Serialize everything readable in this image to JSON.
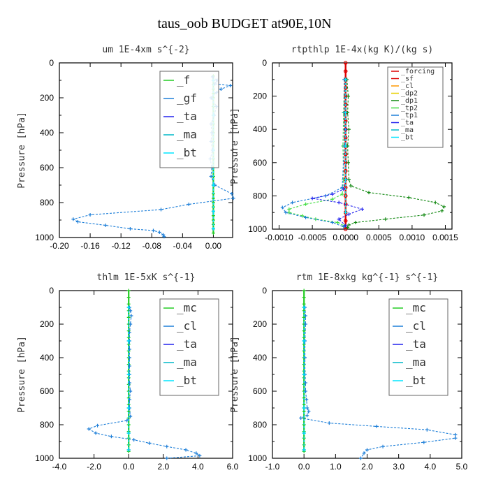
{
  "figure_title": "taus_oob  BUDGET at90E,10N",
  "colors": {
    "f": "#22cc22",
    "gf": "#1e7fd8",
    "ta": "#2222ee",
    "ma": "#00b8c8",
    "bt": "#00e5ff",
    "mc": "#22cc22",
    "cl": "#1e7fd8",
    "forcing": "#dd0000",
    "sf": "#dd0000",
    "cl_o": "#ff9900",
    "dp2": "#e8d000",
    "dp1": "#118811",
    "tp2": "#44dd44",
    "tp1": "#1e7fd8"
  },
  "chart_data": [
    {
      "type": "line",
      "title": "um   1E-4xm  s^{-2}",
      "ylabel": "Pressure [hPa]",
      "xlim": [
        -0.2,
        0.025
      ],
      "ylim": [
        1000,
        0
      ],
      "xticks": [
        -0.2,
        -0.16,
        -0.12,
        -0.08,
        -0.04,
        0.0
      ],
      "xticklabels": [
        "-0.20",
        "-0.16",
        "-0.12",
        "-0.08",
        "-0.04",
        "0.00"
      ],
      "yticks": [
        0,
        200,
        400,
        600,
        800,
        1000
      ],
      "legend": "top-right",
      "legend_style": "large",
      "series": [
        {
          "name": "_f",
          "color": "f",
          "x": [
            0,
            0,
            0,
            0,
            0,
            0,
            0,
            0,
            0,
            0,
            0,
            0,
            0,
            0,
            0,
            0,
            0,
            0,
            0,
            0,
            0,
            0,
            0,
            0,
            0,
            0
          ],
          "y": [
            75,
            100,
            125,
            150,
            175,
            200,
            250,
            300,
            350,
            400,
            450,
            500,
            550,
            600,
            650,
            700,
            750,
            775,
            800,
            825,
            850,
            875,
            900,
            925,
            950,
            975
          ]
        },
        {
          "name": "_gf",
          "color": "gf",
          "x": [
            -0.001,
            0.005,
            0.002,
            0.022,
            0.01,
            0.004,
            -0.003,
            0.004,
            0.001,
            -0.003,
            -0.002,
            -0.003,
            -0.001,
            -0.004,
            -0.002,
            -0.003,
            0.002,
            0.024,
            0.026,
            -0.032,
            -0.068,
            -0.16,
            -0.182,
            -0.176,
            -0.14,
            -0.108,
            -0.078,
            -0.07,
            -0.065,
            -0.064
          ],
          "y": [
            80,
            100,
            120,
            130,
            150,
            170,
            200,
            250,
            300,
            350,
            400,
            450,
            500,
            550,
            600,
            650,
            700,
            750,
            775,
            810,
            840,
            870,
            895,
            910,
            930,
            950,
            960,
            970,
            985,
            995
          ]
        },
        {
          "name": "_ta",
          "color": "ta",
          "x": [
            0,
            0,
            0,
            0,
            0,
            0
          ],
          "y": [
            100,
            300,
            500,
            700,
            850,
            950
          ]
        },
        {
          "name": "_ma",
          "color": "ma",
          "x": [
            0,
            0,
            0,
            0,
            0,
            0
          ],
          "y": [
            100,
            300,
            500,
            700,
            850,
            950
          ]
        },
        {
          "name": "_bt",
          "color": "bt",
          "x": [
            0,
            0,
            0,
            0,
            0,
            0
          ],
          "y": [
            100,
            300,
            500,
            700,
            850,
            950
          ]
        }
      ]
    },
    {
      "type": "line",
      "title": "rtpthlp   1E-4x(kg K)/(kg s)",
      "ylabel": "Pressure [hPa]",
      "xlim": [
        -0.0011,
        0.0016
      ],
      "ylim": [
        1000,
        0
      ],
      "xticks": [
        -0.001,
        -0.0005,
        0.0,
        0.0005,
        0.001,
        0.0015
      ],
      "xticklabels": [
        "-0.0010",
        "-0.0005",
        "0.0000",
        "0.0005",
        "0.0010",
        "0.0015"
      ],
      "yticks": [
        0,
        200,
        400,
        600,
        800,
        1000
      ],
      "legend": "top-right",
      "legend_style": "small",
      "series": [
        {
          "name": "_forcing",
          "color": "forcing",
          "x": [
            0,
            0,
            0,
            0,
            0,
            0,
            0,
            0,
            0,
            0,
            0,
            0,
            0,
            0,
            0,
            0,
            0,
            0,
            0,
            0,
            0
          ],
          "y": [
            0,
            50,
            100,
            150,
            200,
            250,
            300,
            350,
            400,
            450,
            500,
            550,
            600,
            650,
            700,
            750,
            800,
            850,
            900,
            950,
            1000
          ]
        },
        {
          "name": "_sf",
          "color": "sf",
          "x": [
            0,
            0,
            0,
            0,
            0,
            0,
            0,
            0,
            0,
            0,
            0,
            0,
            0,
            0,
            0,
            0,
            0,
            0,
            0,
            0,
            0
          ],
          "y": [
            0,
            50,
            100,
            150,
            200,
            250,
            300,
            350,
            400,
            450,
            500,
            550,
            600,
            650,
            700,
            750,
            800,
            850,
            900,
            950,
            1000
          ]
        },
        {
          "name": "_cl",
          "color": "cl_o",
          "x": [
            0,
            0,
            0,
            0,
            0
          ],
          "y": [
            100,
            300,
            500,
            700,
            900
          ]
        },
        {
          "name": "_dp2",
          "color": "dp2",
          "x": [
            0,
            0,
            0,
            0,
            0
          ],
          "y": [
            100,
            300,
            500,
            700,
            900
          ]
        },
        {
          "name": "_dp1",
          "color": "dp1",
          "x": [
            2e-05,
            4e-05,
            3e-05,
            5e-05,
            3e-05,
            4e-05,
            5e-05,
            8e-05,
            0.00035,
            0.00095,
            0.00135,
            0.00148,
            0.00145,
            0.00118,
            0.0006,
            0.00015,
            5e-05,
            3e-05
          ],
          "y": [
            100,
            200,
            300,
            400,
            500,
            600,
            700,
            740,
            780,
            810,
            840,
            865,
            890,
            915,
            940,
            960,
            975,
            990
          ]
        },
        {
          "name": "_tp2",
          "color": "tp2",
          "x": [
            -2e-05,
            -3e-05,
            -4e-05,
            -3e-05,
            -5e-05,
            -0.0002,
            -0.0006,
            -0.00085,
            -0.00085,
            -0.00065,
            -0.00045,
            -0.00012,
            -2e-05
          ],
          "y": [
            100,
            300,
            500,
            700,
            790,
            820,
            850,
            880,
            900,
            920,
            940,
            960,
            980
          ]
        },
        {
          "name": "_tp1",
          "color": "tp1",
          "x": [
            -2e-05,
            -2e-05,
            -2e-05,
            -5e-05,
            -0.0003,
            -0.0008,
            -0.00095,
            -0.0009,
            -0.0006,
            -0.0002,
            -3e-05
          ],
          "y": [
            100,
            300,
            500,
            750,
            800,
            840,
            870,
            900,
            930,
            960,
            985
          ]
        },
        {
          "name": "_ta",
          "color": "ta",
          "x": [
            0,
            0,
            0,
            -3e-05,
            -0.0002,
            -0.0005,
            -0.0001,
            0.00025,
            5e-05,
            -0.0001,
            0.0
          ],
          "y": [
            100,
            400,
            700,
            760,
            790,
            815,
            840,
            880,
            910,
            940,
            980
          ]
        },
        {
          "name": "_ma",
          "color": "ma",
          "x": [
            0,
            0,
            0,
            0,
            0
          ],
          "y": [
            100,
            300,
            500,
            700,
            900
          ]
        },
        {
          "name": "_bt",
          "color": "bt",
          "x": [
            0,
            0,
            0,
            0,
            0
          ],
          "y": [
            100,
            300,
            500,
            700,
            900
          ]
        }
      ]
    },
    {
      "type": "line",
      "title": "thlm   1E-5xK  s^{-1}",
      "ylabel": "Pressure [hPa]",
      "xlim": [
        -4.0,
        6.0
      ],
      "ylim": [
        1000,
        0
      ],
      "xticks": [
        -4.0,
        -2.0,
        0.0,
        2.0,
        4.0,
        6.0
      ],
      "xticklabels": [
        "-4.0",
        "-2.0",
        "0.0",
        "2.0",
        "4.0",
        "6.0"
      ],
      "yticks": [
        0,
        200,
        400,
        600,
        800,
        1000
      ],
      "legend": "top-right",
      "legend_style": "large",
      "series": [
        {
          "name": "_mc",
          "color": "mc",
          "x": [
            0,
            0,
            0,
            0,
            0,
            0,
            0,
            0,
            0,
            0,
            0,
            0,
            0,
            0,
            0,
            0,
            0,
            0,
            0,
            0,
            0,
            0,
            0,
            0,
            0
          ],
          "y": [
            0,
            40,
            80,
            120,
            160,
            200,
            240,
            280,
            320,
            360,
            400,
            440,
            480,
            520,
            560,
            600,
            640,
            680,
            720,
            760,
            800,
            840,
            880,
            920,
            960
          ]
        },
        {
          "name": "_cl",
          "color": "cl",
          "x": [
            0.05,
            0.1,
            0.15,
            0.1,
            0.05,
            0.05,
            0.05,
            0.05,
            0.05,
            0.05,
            0.05,
            0.1,
            0.05,
            0.05,
            0.1,
            -0.1,
            -1.8,
            -2.3,
            -1.9,
            -1.0,
            0.3,
            1.2,
            2.2,
            3.3,
            3.9,
            4.1,
            2.2
          ],
          "y": [
            100,
            120,
            150,
            200,
            250,
            300,
            350,
            400,
            450,
            500,
            550,
            600,
            650,
            700,
            750,
            775,
            805,
            825,
            850,
            870,
            890,
            910,
            930,
            950,
            970,
            985,
            1000
          ]
        },
        {
          "name": "_ta",
          "color": "ta",
          "x": [
            0,
            0,
            0,
            0,
            0,
            0
          ],
          "y": [
            100,
            300,
            500,
            700,
            850,
            950
          ]
        },
        {
          "name": "_ma",
          "color": "ma",
          "x": [
            0,
            0,
            0,
            0,
            0,
            0
          ],
          "y": [
            100,
            300,
            500,
            700,
            850,
            950
          ]
        },
        {
          "name": "_bt",
          "color": "bt",
          "x": [
            0,
            0,
            0,
            0,
            0,
            0
          ],
          "y": [
            100,
            300,
            500,
            700,
            850,
            950
          ]
        }
      ]
    },
    {
      "type": "line",
      "title": "rtm   1E-8xkg  kg^{-1}  s^{-1}",
      "ylabel": "Pressure [hPa]",
      "xlim": [
        -1.0,
        5.0
      ],
      "ylim": [
        1000,
        0
      ],
      "xticks": [
        -1.0,
        0.0,
        1.0,
        2.0,
        3.0,
        4.0,
        5.0
      ],
      "xticklabels": [
        "-1.0",
        "0.0",
        "1.0",
        "2.0",
        "3.0",
        "4.0",
        "5.0"
      ],
      "yticks": [
        0,
        200,
        400,
        600,
        800,
        1000
      ],
      "legend": "top-right",
      "legend_style": "large",
      "series": [
        {
          "name": "_mc",
          "color": "mc",
          "x": [
            0,
            0,
            0,
            0,
            0,
            0,
            0,
            0,
            0,
            0,
            0,
            0,
            0,
            0,
            0,
            0,
            0,
            0,
            0,
            0,
            0,
            0,
            0,
            0,
            0
          ],
          "y": [
            0,
            40,
            80,
            120,
            160,
            200,
            240,
            280,
            320,
            360,
            400,
            440,
            480,
            520,
            560,
            600,
            640,
            680,
            720,
            760,
            800,
            840,
            880,
            920,
            960
          ]
        },
        {
          "name": "_cl",
          "color": "cl",
          "x": [
            0.03,
            0.05,
            0.05,
            0.03,
            0.03,
            0.03,
            0.05,
            0.05,
            0.08,
            0.1,
            0.15,
            0.1,
            -0.1,
            0.8,
            2.3,
            3.9,
            4.8,
            4.8,
            3.8,
            2.5,
            2.0,
            1.9,
            1.8
          ],
          "y": [
            100,
            150,
            200,
            300,
            400,
            500,
            550,
            600,
            650,
            700,
            720,
            745,
            760,
            790,
            810,
            830,
            860,
            880,
            905,
            930,
            950,
            970,
            1000
          ]
        },
        {
          "name": "_ta",
          "color": "ta",
          "x": [
            0,
            0,
            0,
            0,
            0,
            0
          ],
          "y": [
            100,
            300,
            500,
            700,
            850,
            950
          ]
        },
        {
          "name": "_ma",
          "color": "ma",
          "x": [
            0,
            0,
            0,
            0,
            0,
            0
          ],
          "y": [
            100,
            300,
            500,
            700,
            850,
            950
          ]
        },
        {
          "name": "_bt",
          "color": "bt",
          "x": [
            0,
            0,
            0,
            0,
            0,
            0
          ],
          "y": [
            100,
            300,
            500,
            700,
            850,
            950
          ]
        }
      ]
    }
  ]
}
